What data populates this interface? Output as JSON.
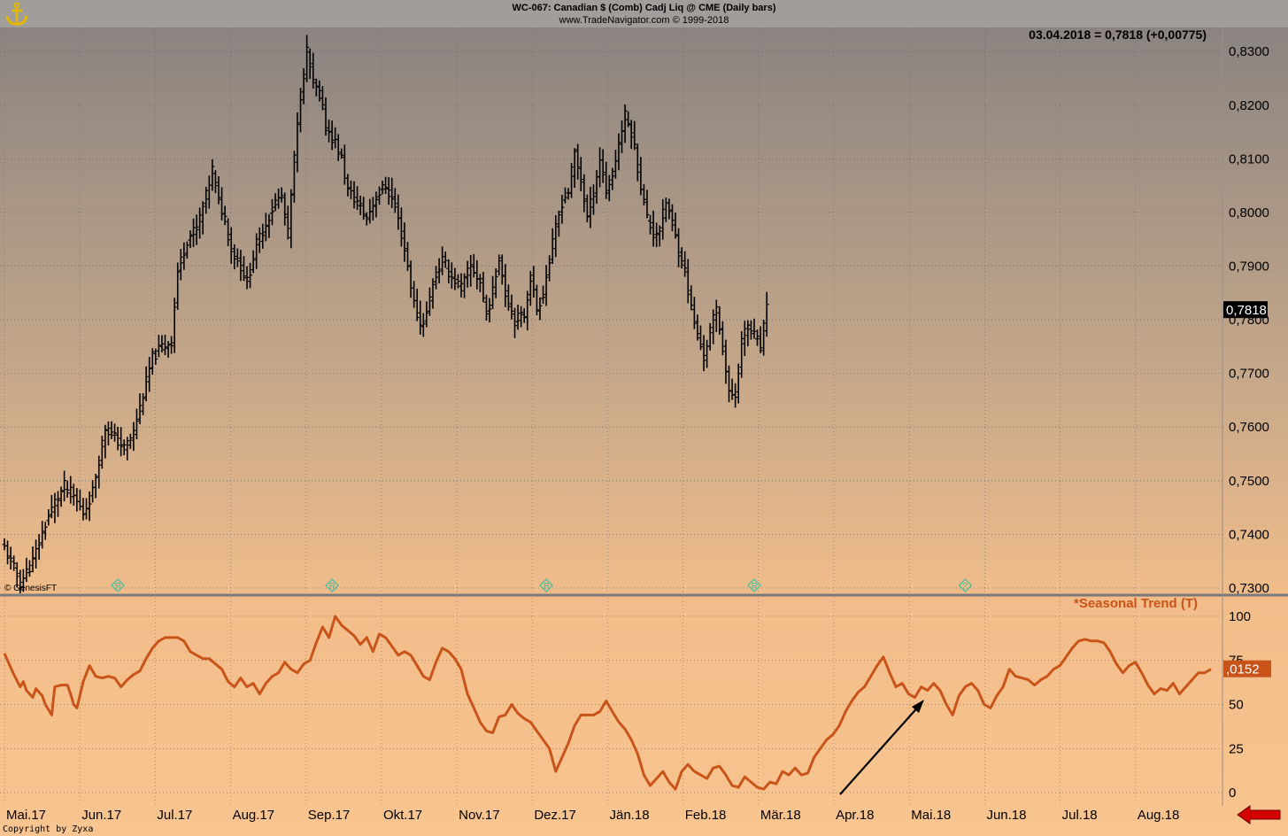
{
  "header": {
    "title": "WC-067:  Canadian $ (Comb) Cadj Liq @ CME  (Daily bars)",
    "subtitle": "www.TradeNavigator.com © 1999-2018",
    "quote": "03.04.2018 = 0,7818 (+0,00775)"
  },
  "footer": {
    "genesis": "© GenesisFT",
    "copyright": "Copyright by Zyxa"
  },
  "colors": {
    "price_bars": "#000000",
    "seasonal_line": "#c9541a",
    "last_price_box": "#000000",
    "seasonal_value_box": "#c9541a",
    "nav_arrow": "#d40000"
  },
  "chart_data": [
    {
      "type": "ohlc",
      "series_name": "Canadian $ (Comb) Cadj Liq @ CME",
      "ylim": [
        0.7295,
        0.833
      ],
      "yticks": [
        "0,7300",
        "0,7400",
        "0,7500",
        "0,7600",
        "0,7700",
        "0,7800",
        "0,7900",
        "0,8000",
        "0,8100",
        "0,8200",
        "0,8300"
      ],
      "last_value_label": "0,7818",
      "markers": [
        "R",
        "R",
        "R",
        "R",
        "?"
      ],
      "close_approx": [
        [
          0,
          0.7375
        ],
        [
          5,
          0.731
        ],
        [
          9,
          0.735
        ],
        [
          13,
          0.742
        ],
        [
          16,
          0.746
        ],
        [
          19,
          0.749
        ],
        [
          22,
          0.747
        ],
        [
          25,
          0.744
        ],
        [
          28,
          0.748
        ],
        [
          30,
          0.754
        ],
        [
          32,
          0.76
        ],
        [
          35,
          0.758
        ],
        [
          38,
          0.756
        ],
        [
          41,
          0.759
        ],
        [
          44,
          0.766
        ],
        [
          47,
          0.773
        ],
        [
          50,
          0.775
        ],
        [
          53,
          0.776
        ],
        [
          55,
          0.789
        ],
        [
          58,
          0.795
        ],
        [
          61,
          0.797
        ],
        [
          64,
          0.803
        ],
        [
          66,
          0.808
        ],
        [
          68,
          0.802
        ],
        [
          70,
          0.799
        ],
        [
          72,
          0.793
        ],
        [
          75,
          0.79
        ],
        [
          77,
          0.787
        ],
        [
          80,
          0.794
        ],
        [
          83,
          0.798
        ],
        [
          86,
          0.802
        ],
        [
          88,
          0.803
        ],
        [
          90,
          0.796
        ],
        [
          92,
          0.81
        ],
        [
          94,
          0.822
        ],
        [
          96,
          0.83
        ],
        [
          98,
          0.824
        ],
        [
          100,
          0.822
        ],
        [
          102,
          0.816
        ],
        [
          105,
          0.813
        ],
        [
          107,
          0.81
        ],
        [
          109,
          0.804
        ],
        [
          112,
          0.802
        ],
        [
          115,
          0.799
        ],
        [
          118,
          0.803
        ],
        [
          121,
          0.805
        ],
        [
          124,
          0.801
        ],
        [
          126,
          0.796
        ],
        [
          128,
          0.79
        ],
        [
          130,
          0.783
        ],
        [
          132,
          0.779
        ],
        [
          134,
          0.781
        ],
        [
          136,
          0.787
        ],
        [
          139,
          0.791
        ],
        [
          142,
          0.788
        ],
        [
          145,
          0.786
        ],
        [
          148,
          0.79
        ],
        [
          151,
          0.787
        ],
        [
          153,
          0.781
        ],
        [
          155,
          0.785
        ],
        [
          157,
          0.792
        ],
        [
          159,
          0.785
        ],
        [
          162,
          0.78
        ],
        [
          165,
          0.781
        ],
        [
          167,
          0.788
        ],
        [
          169,
          0.782
        ],
        [
          171,
          0.785
        ],
        [
          173,
          0.791
        ],
        [
          175,
          0.797
        ],
        [
          177,
          0.802
        ],
        [
          179,
          0.804
        ],
        [
          181,
          0.811
        ],
        [
          183,
          0.806
        ],
        [
          185,
          0.799
        ],
        [
          187,
          0.804
        ],
        [
          189,
          0.81
        ],
        [
          191,
          0.804
        ],
        [
          193,
          0.807
        ],
        [
          195,
          0.813
        ],
        [
          197,
          0.818
        ],
        [
          199,
          0.815
        ],
        [
          200,
          0.812
        ],
        [
          202,
          0.805
        ],
        [
          204,
          0.799
        ],
        [
          206,
          0.796
        ],
        [
          208,
          0.797
        ],
        [
          210,
          0.802
        ],
        [
          212,
          0.798
        ],
        [
          214,
          0.793
        ],
        [
          216,
          0.789
        ],
        [
          218,
          0.782
        ],
        [
          220,
          0.777
        ],
        [
          222,
          0.773
        ],
        [
          224,
          0.778
        ],
        [
          226,
          0.782
        ],
        [
          228,
          0.775
        ],
        [
          230,
          0.766
        ],
        [
          232,
          0.766
        ],
        [
          234,
          0.776
        ],
        [
          236,
          0.779
        ],
        [
          238,
          0.777
        ],
        [
          240,
          0.775
        ],
        [
          242,
          0.7818
        ]
      ]
    },
    {
      "type": "line",
      "series_name": "*Seasonal Trend (T)",
      "ylim": [
        -4,
        103
      ],
      "yticks": [
        "0",
        "25",
        "50",
        "75",
        "100"
      ],
      "last_value_label": ",0152",
      "values_approx": [
        [
          0,
          79
        ],
        [
          3,
          67
        ],
        [
          5,
          60
        ],
        [
          6,
          63
        ],
        [
          7,
          58
        ],
        [
          9,
          54
        ],
        [
          10,
          59
        ],
        [
          12,
          55
        ],
        [
          13,
          50
        ],
        [
          15,
          44
        ],
        [
          16,
          60
        ],
        [
          18,
          61
        ],
        [
          20,
          61
        ],
        [
          21,
          56
        ],
        [
          22,
          50
        ],
        [
          23,
          48
        ],
        [
          25,
          63
        ],
        [
          27,
          72
        ],
        [
          29,
          66
        ],
        [
          31,
          65
        ],
        [
          33,
          66
        ],
        [
          35,
          65
        ],
        [
          37,
          60
        ],
        [
          39,
          64
        ],
        [
          41,
          67
        ],
        [
          43,
          69
        ],
        [
          45,
          76
        ],
        [
          47,
          82
        ],
        [
          49,
          86
        ],
        [
          51,
          88
        ],
        [
          53,
          88
        ],
        [
          55,
          88
        ],
        [
          57,
          86
        ],
        [
          59,
          80
        ],
        [
          61,
          78
        ],
        [
          63,
          76
        ],
        [
          65,
          76
        ],
        [
          67,
          73
        ],
        [
          69,
          70
        ],
        [
          71,
          63
        ],
        [
          73,
          60
        ],
        [
          75,
          65
        ],
        [
          77,
          60
        ],
        [
          79,
          62
        ],
        [
          81,
          56
        ],
        [
          83,
          62
        ],
        [
          85,
          66
        ],
        [
          87,
          68
        ],
        [
          89,
          74
        ],
        [
          91,
          70
        ],
        [
          93,
          68
        ],
        [
          95,
          73
        ],
        [
          97,
          75
        ],
        [
          99,
          85
        ],
        [
          101,
          94
        ],
        [
          103,
          88
        ],
        [
          105,
          100
        ],
        [
          107,
          95
        ],
        [
          109,
          92
        ],
        [
          111,
          89
        ],
        [
          113,
          84
        ],
        [
          115,
          88
        ],
        [
          117,
          80
        ],
        [
          119,
          90
        ],
        [
          121,
          88
        ],
        [
          123,
          83
        ],
        [
          125,
          78
        ],
        [
          127,
          80
        ],
        [
          129,
          78
        ],
        [
          131,
          72
        ],
        [
          133,
          66
        ],
        [
          135,
          64
        ],
        [
          137,
          74
        ],
        [
          139,
          82
        ],
        [
          141,
          80
        ],
        [
          143,
          76
        ],
        [
          145,
          70
        ],
        [
          147,
          56
        ],
        [
          149,
          48
        ],
        [
          151,
          40
        ],
        [
          153,
          35
        ],
        [
          155,
          34
        ],
        [
          157,
          43
        ],
        [
          159,
          44
        ],
        [
          161,
          50
        ],
        [
          163,
          45
        ],
        [
          165,
          42
        ],
        [
          167,
          40
        ],
        [
          169,
          35
        ],
        [
          171,
          30
        ],
        [
          173,
          25
        ],
        [
          175,
          12
        ],
        [
          177,
          20
        ],
        [
          179,
          28
        ],
        [
          181,
          38
        ],
        [
          183,
          44
        ],
        [
          185,
          44
        ],
        [
          187,
          44
        ],
        [
          189,
          46
        ],
        [
          191,
          52
        ],
        [
          193,
          46
        ],
        [
          195,
          40
        ],
        [
          197,
          36
        ],
        [
          199,
          30
        ],
        [
          201,
          22
        ],
        [
          203,
          10
        ],
        [
          205,
          4
        ],
        [
          207,
          8
        ],
        [
          209,
          12
        ],
        [
          211,
          6
        ],
        [
          213,
          2
        ],
        [
          215,
          12
        ],
        [
          217,
          16
        ],
        [
          219,
          12
        ],
        [
          221,
          10
        ],
        [
          223,
          8
        ],
        [
          225,
          14
        ],
        [
          227,
          15
        ],
        [
          229,
          10
        ],
        [
          231,
          4
        ],
        [
          233,
          3
        ],
        [
          235,
          9
        ],
        [
          237,
          6
        ],
        [
          239,
          3
        ],
        [
          241,
          2
        ],
        [
          243,
          6
        ],
        [
          245,
          5
        ],
        [
          247,
          12
        ],
        [
          249,
          10
        ],
        [
          251,
          14
        ],
        [
          253,
          10
        ],
        [
          255,
          11
        ],
        [
          257,
          20
        ],
        [
          259,
          25
        ],
        [
          261,
          30
        ],
        [
          263,
          33
        ],
        [
          265,
          38
        ],
        [
          267,
          46
        ],
        [
          269,
          52
        ],
        [
          271,
          57
        ],
        [
          273,
          60
        ],
        [
          275,
          66
        ],
        [
          277,
          72
        ],
        [
          279,
          77
        ],
        [
          281,
          68
        ],
        [
          283,
          60
        ],
        [
          285,
          62
        ],
        [
          287,
          56
        ],
        [
          289,
          54
        ],
        [
          291,
          60
        ],
        [
          293,
          58
        ],
        [
          295,
          62
        ],
        [
          297,
          58
        ],
        [
          299,
          50
        ],
        [
          301,
          44
        ],
        [
          303,
          55
        ],
        [
          305,
          60
        ],
        [
          307,
          62
        ],
        [
          309,
          58
        ],
        [
          311,
          50
        ],
        [
          313,
          48
        ],
        [
          315,
          55
        ],
        [
          317,
          60
        ],
        [
          319,
          70
        ],
        [
          321,
          66
        ],
        [
          323,
          65
        ],
        [
          325,
          64
        ],
        [
          327,
          61
        ],
        [
          329,
          64
        ],
        [
          331,
          66
        ],
        [
          333,
          70
        ],
        [
          335,
          72
        ],
        [
          337,
          77
        ],
        [
          339,
          82
        ],
        [
          341,
          86
        ],
        [
          343,
          87
        ],
        [
          345,
          86
        ],
        [
          347,
          86
        ],
        [
          349,
          85
        ],
        [
          351,
          80
        ],
        [
          353,
          73
        ],
        [
          355,
          68
        ],
        [
          357,
          72
        ],
        [
          359,
          74
        ],
        [
          361,
          68
        ],
        [
          363,
          61
        ],
        [
          365,
          56
        ],
        [
          367,
          59
        ],
        [
          369,
          58
        ],
        [
          371,
          62
        ],
        [
          373,
          56
        ],
        [
          375,
          60
        ],
        [
          377,
          64
        ],
        [
          379,
          68
        ],
        [
          381,
          68
        ],
        [
          383,
          70
        ]
      ]
    }
  ],
  "x_axis": {
    "labels": [
      "Mai.17",
      "Jun.17",
      "Jul.17",
      "Aug.17",
      "Sep.17",
      "Okt.17",
      "Nov.17",
      "Dez.17",
      "Jän.18",
      "Feb.18",
      "Mär.18",
      "Apr.18",
      "Mai.18",
      "Jun.18",
      "Jul.18",
      "Aug.18"
    ]
  }
}
